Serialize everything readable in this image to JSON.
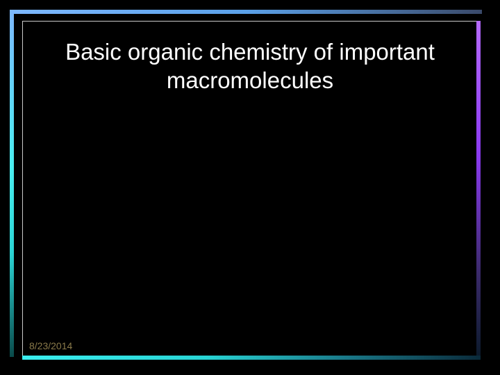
{
  "slide": {
    "title": "Basic organic chemistry of important macromolecules",
    "date": "8/23/2014",
    "background_color": "#000000",
    "title_color": "#ffffff",
    "title_fontsize": 33,
    "date_color": "#8a7a4a",
    "date_fontsize": 14,
    "frame": {
      "outer_top_gradient": [
        "#7db8ff",
        "#5aa0e8",
        "#3a4a6a"
      ],
      "outer_left_gradient": [
        "#7db8ff",
        "#4aeef0",
        "#2bd4d4",
        "#0a4a4a"
      ],
      "inner_border_color": "#cccccc",
      "right_strip_gradient": [
        "#b56aff",
        "#8a3af0",
        "#3a2a6a",
        "#0a1a2a"
      ],
      "bottom_strip_gradient": [
        "#3aeef0",
        "#28d4d4",
        "#1a7a8a",
        "#0a2a3a"
      ]
    }
  }
}
